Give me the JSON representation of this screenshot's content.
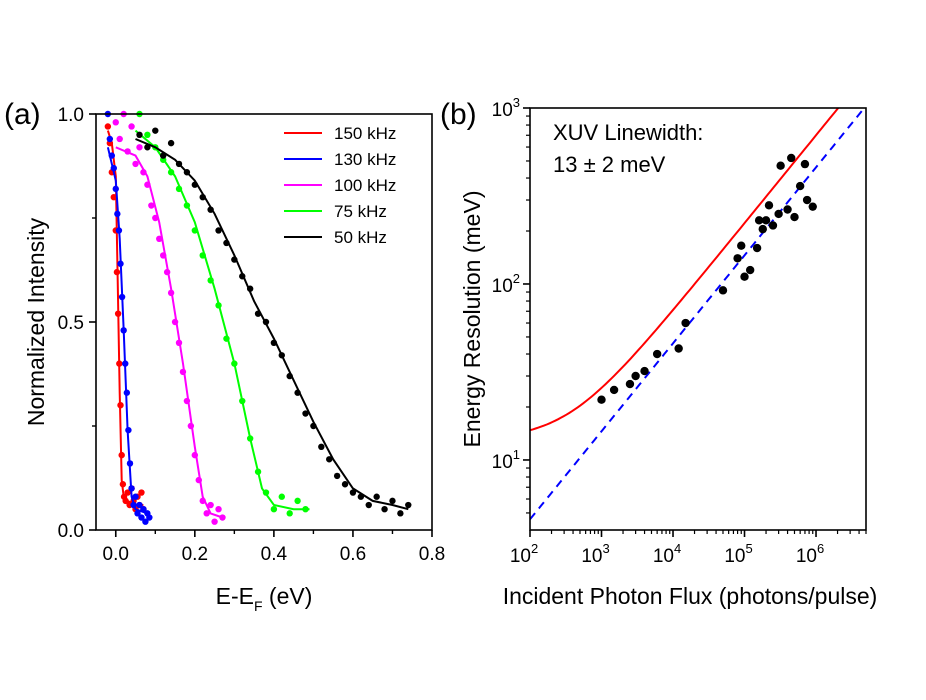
{
  "chart_data": [
    {
      "type": "scatter",
      "panel_label": "(a)",
      "title": "",
      "xlabel": "E-E",
      "xlabel_subscript": "F",
      "xlabel_suffix": " (eV)",
      "ylabel": "Normalized Intensity",
      "xlim": [
        -0.05,
        0.8
      ],
      "ylim": [
        0.0,
        1.0
      ],
      "x_ticks": [
        0.0,
        0.2,
        0.4,
        0.6,
        0.8
      ],
      "x_tick_labels": [
        "0.0",
        "0.2",
        "0.4",
        "0.6",
        "0.8"
      ],
      "y_ticks": [
        0.0,
        0.5,
        1.0
      ],
      "y_tick_labels": [
        "0.0",
        "0.5",
        "1.0"
      ],
      "legend_position": "top-right",
      "series": [
        {
          "name": "150 kHz",
          "color": "#ff0000",
          "fit": [
            [
              -0.02,
              0.96
            ],
            [
              -0.01,
              0.93
            ],
            [
              0.0,
              0.85
            ],
            [
              0.005,
              0.6
            ],
            [
              0.01,
              0.33
            ],
            [
              0.015,
              0.12
            ],
            [
              0.02,
              0.08
            ],
            [
              0.03,
              0.07
            ],
            [
              0.05,
              0.06
            ],
            [
              0.07,
              0.06
            ]
          ],
          "points": [
            [
              -0.02,
              0.97
            ],
            [
              -0.015,
              0.93
            ],
            [
              -0.01,
              0.86
            ],
            [
              -0.005,
              0.8
            ],
            [
              0.0,
              0.72
            ],
            [
              0.003,
              0.62
            ],
            [
              0.006,
              0.52
            ],
            [
              0.009,
              0.4
            ],
            [
              0.012,
              0.3
            ],
            [
              0.015,
              0.18
            ],
            [
              0.018,
              0.11
            ],
            [
              0.021,
              0.08
            ],
            [
              0.025,
              0.07
            ],
            [
              0.03,
              0.09
            ],
            [
              0.035,
              0.06
            ],
            [
              0.04,
              0.1
            ],
            [
              0.045,
              0.07
            ],
            [
              0.05,
              0.05
            ],
            [
              0.055,
              0.08
            ],
            [
              0.06,
              0.06
            ],
            [
              0.065,
              0.09
            ],
            [
              0.07,
              0.05
            ]
          ]
        },
        {
          "name": "130 kHz",
          "color": "#0000ff",
          "fit": [
            [
              -0.02,
              0.92
            ],
            [
              0.0,
              0.84
            ],
            [
              0.01,
              0.7
            ],
            [
              0.02,
              0.48
            ],
            [
              0.03,
              0.24
            ],
            [
              0.04,
              0.08
            ],
            [
              0.05,
              0.05
            ],
            [
              0.08,
              0.04
            ]
          ],
          "points": [
            [
              -0.02,
              1.0
            ],
            [
              -0.015,
              0.94
            ],
            [
              -0.01,
              0.9
            ],
            [
              -0.005,
              0.87
            ],
            [
              0.0,
              0.82
            ],
            [
              0.004,
              0.76
            ],
            [
              0.008,
              0.72
            ],
            [
              0.012,
              0.64
            ],
            [
              0.016,
              0.56
            ],
            [
              0.02,
              0.48
            ],
            [
              0.024,
              0.4
            ],
            [
              0.028,
              0.33
            ],
            [
              0.032,
              0.24
            ],
            [
              0.036,
              0.16
            ],
            [
              0.04,
              0.1
            ],
            [
              0.045,
              0.06
            ],
            [
              0.05,
              0.08
            ],
            [
              0.055,
              0.04
            ],
            [
              0.06,
              0.06
            ],
            [
              0.065,
              0.03
            ],
            [
              0.07,
              0.05
            ],
            [
              0.075,
              0.02
            ],
            [
              0.08,
              0.04
            ],
            [
              0.085,
              0.03
            ]
          ]
        },
        {
          "name": "100 kHz",
          "color": "#ff00ff",
          "fit": [
            [
              0.0,
              0.92
            ],
            [
              0.05,
              0.9
            ],
            [
              0.08,
              0.85
            ],
            [
              0.11,
              0.74
            ],
            [
              0.14,
              0.58
            ],
            [
              0.17,
              0.4
            ],
            [
              0.2,
              0.2
            ],
            [
              0.22,
              0.08
            ],
            [
              0.24,
              0.04
            ],
            [
              0.27,
              0.03
            ]
          ],
          "points": [
            [
              0.0,
              0.98
            ],
            [
              0.01,
              0.94
            ],
            [
              0.02,
              1.0
            ],
            [
              0.03,
              0.91
            ],
            [
              0.04,
              0.97
            ],
            [
              0.05,
              0.88
            ],
            [
              0.06,
              0.92
            ],
            [
              0.07,
              0.86
            ],
            [
              0.08,
              0.83
            ],
            [
              0.09,
              0.78
            ],
            [
              0.1,
              0.75
            ],
            [
              0.11,
              0.7
            ],
            [
              0.12,
              0.66
            ],
            [
              0.13,
              0.62
            ],
            [
              0.14,
              0.57
            ],
            [
              0.15,
              0.5
            ],
            [
              0.16,
              0.45
            ],
            [
              0.17,
              0.38
            ],
            [
              0.18,
              0.31
            ],
            [
              0.19,
              0.25
            ],
            [
              0.2,
              0.18
            ],
            [
              0.21,
              0.12
            ],
            [
              0.22,
              0.07
            ],
            [
              0.23,
              0.04
            ],
            [
              0.24,
              0.06
            ],
            [
              0.25,
              0.02
            ],
            [
              0.26,
              0.05
            ],
            [
              0.27,
              0.03
            ]
          ]
        },
        {
          "name": "75 kHz",
          "color": "#00ff00",
          "fit": [
            [
              0.05,
              0.96
            ],
            [
              0.1,
              0.92
            ],
            [
              0.15,
              0.85
            ],
            [
              0.2,
              0.74
            ],
            [
              0.25,
              0.58
            ],
            [
              0.3,
              0.4
            ],
            [
              0.34,
              0.22
            ],
            [
              0.37,
              0.1
            ],
            [
              0.4,
              0.06
            ],
            [
              0.45,
              0.05
            ],
            [
              0.49,
              0.05
            ]
          ],
          "points": [
            [
              0.06,
              1.0
            ],
            [
              0.08,
              0.95
            ],
            [
              0.1,
              0.92
            ],
            [
              0.12,
              0.89
            ],
            [
              0.14,
              0.86
            ],
            [
              0.16,
              0.82
            ],
            [
              0.18,
              0.78
            ],
            [
              0.2,
              0.72
            ],
            [
              0.22,
              0.66
            ],
            [
              0.24,
              0.6
            ],
            [
              0.26,
              0.54
            ],
            [
              0.28,
              0.46
            ],
            [
              0.3,
              0.4
            ],
            [
              0.32,
              0.31
            ],
            [
              0.34,
              0.22
            ],
            [
              0.36,
              0.14
            ],
            [
              0.38,
              0.09
            ],
            [
              0.4,
              0.05
            ],
            [
              0.42,
              0.08
            ],
            [
              0.44,
              0.04
            ],
            [
              0.46,
              0.07
            ],
            [
              0.48,
              0.05
            ]
          ]
        },
        {
          "name": "50 kHz",
          "color": "#000000",
          "fit": [
            [
              0.05,
              0.94
            ],
            [
              0.1,
              0.92
            ],
            [
              0.15,
              0.89
            ],
            [
              0.2,
              0.84
            ],
            [
              0.25,
              0.76
            ],
            [
              0.3,
              0.66
            ],
            [
              0.35,
              0.55
            ],
            [
              0.4,
              0.46
            ],
            [
              0.45,
              0.36
            ],
            [
              0.5,
              0.26
            ],
            [
              0.55,
              0.17
            ],
            [
              0.6,
              0.1
            ],
            [
              0.65,
              0.07
            ],
            [
              0.7,
              0.06
            ],
            [
              0.74,
              0.05
            ]
          ],
          "points": [
            [
              0.06,
              0.95
            ],
            [
              0.08,
              0.92
            ],
            [
              0.1,
              0.96
            ],
            [
              0.12,
              0.9
            ],
            [
              0.14,
              0.93
            ],
            [
              0.16,
              0.88
            ],
            [
              0.18,
              0.86
            ],
            [
              0.2,
              0.83
            ],
            [
              0.22,
              0.8
            ],
            [
              0.24,
              0.77
            ],
            [
              0.26,
              0.72
            ],
            [
              0.28,
              0.69
            ],
            [
              0.3,
              0.65
            ],
            [
              0.32,
              0.61
            ],
            [
              0.34,
              0.58
            ],
            [
              0.36,
              0.52
            ],
            [
              0.38,
              0.5
            ],
            [
              0.4,
              0.45
            ],
            [
              0.42,
              0.42
            ],
            [
              0.44,
              0.37
            ],
            [
              0.46,
              0.33
            ],
            [
              0.48,
              0.28
            ],
            [
              0.5,
              0.25
            ],
            [
              0.52,
              0.2
            ],
            [
              0.54,
              0.17
            ],
            [
              0.56,
              0.13
            ],
            [
              0.58,
              0.11
            ],
            [
              0.6,
              0.09
            ],
            [
              0.62,
              0.08
            ],
            [
              0.64,
              0.06
            ],
            [
              0.66,
              0.08
            ],
            [
              0.68,
              0.05
            ],
            [
              0.7,
              0.07
            ],
            [
              0.72,
              0.04
            ],
            [
              0.74,
              0.06
            ]
          ]
        }
      ]
    },
    {
      "type": "scatter",
      "panel_label": "(b)",
      "title": "",
      "xlabel": "Incident Photon Flux (photons/pulse)",
      "ylabel": "Energy Resolution (meV)",
      "x_scale": "log",
      "y_scale": "log",
      "xlim": [
        100,
        5000000
      ],
      "ylim": [
        4,
        1000
      ],
      "x_ticks": [
        100,
        1000,
        10000,
        100000,
        1000000
      ],
      "x_tick_base": "10",
      "x_tick_exponents": [
        "2",
        "3",
        "4",
        "5",
        "6"
      ],
      "y_ticks": [
        10,
        100,
        1000
      ],
      "y_tick_base": "10",
      "y_tick_exponents": [
        "1",
        "2",
        "3"
      ],
      "annotation_lines": [
        "XUV Linewidth:",
        "13 ± 2 meV"
      ],
      "measured_points": [
        [
          1000,
          22
        ],
        [
          1500,
          25
        ],
        [
          2500,
          27
        ],
        [
          3000,
          30
        ],
        [
          4000,
          32
        ],
        [
          6000,
          40
        ],
        [
          12000,
          43
        ],
        [
          15000,
          60
        ],
        [
          50000,
          92
        ],
        [
          80000,
          140
        ],
        [
          90000,
          165
        ],
        [
          100000,
          110
        ],
        [
          120000,
          120
        ],
        [
          150000,
          160
        ],
        [
          160000,
          230
        ],
        [
          180000,
          205
        ],
        [
          200000,
          230
        ],
        [
          220000,
          280
        ],
        [
          250000,
          215
        ],
        [
          300000,
          250
        ],
        [
          320000,
          470
        ],
        [
          400000,
          265
        ],
        [
          450000,
          520
        ],
        [
          500000,
          240
        ],
        [
          600000,
          360
        ],
        [
          700000,
          480
        ],
        [
          750000,
          300
        ],
        [
          900000,
          275
        ]
      ],
      "fit_curve": {
        "color": "#ff0000",
        "style": "solid",
        "linewidth_meV": 13,
        "slope": 0.5,
        "prefactor_meV": 0.7
      },
      "reference_line": {
        "color": "#0000ff",
        "style": "dashed",
        "slope": 0.5,
        "prefactor_meV": 0.46
      }
    }
  ]
}
